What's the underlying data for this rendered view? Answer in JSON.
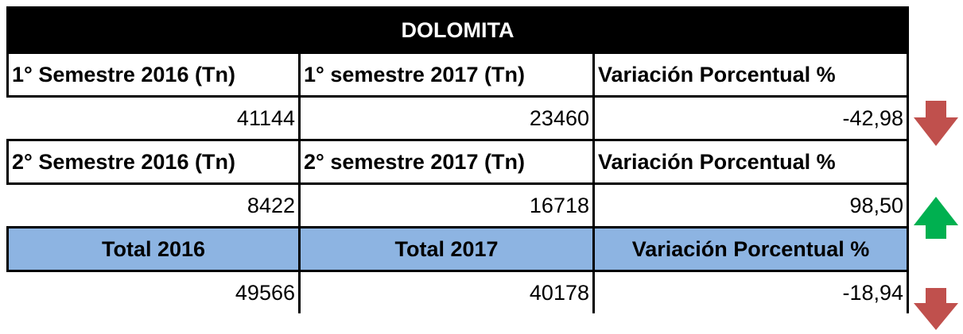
{
  "table": {
    "title": "DOLOMITA",
    "rows": [
      [
        "1° Semestre 2016 (Tn)",
        "1° semestre 2017 (Tn)",
        "Variación Porcentual %"
      ],
      [
        "41144",
        "23460",
        "-42,98"
      ],
      [
        "2° Semestre 2016 (Tn)",
        "2° semestre 2017 (Tn)",
        "Variación Porcentual %"
      ],
      [
        "8422",
        "16718",
        "98,50"
      ],
      [
        "Total 2016",
        "Total 2017",
        "Variación Porcentual %"
      ],
      [
        "49566",
        "40178",
        "-18,94"
      ]
    ]
  }
}
